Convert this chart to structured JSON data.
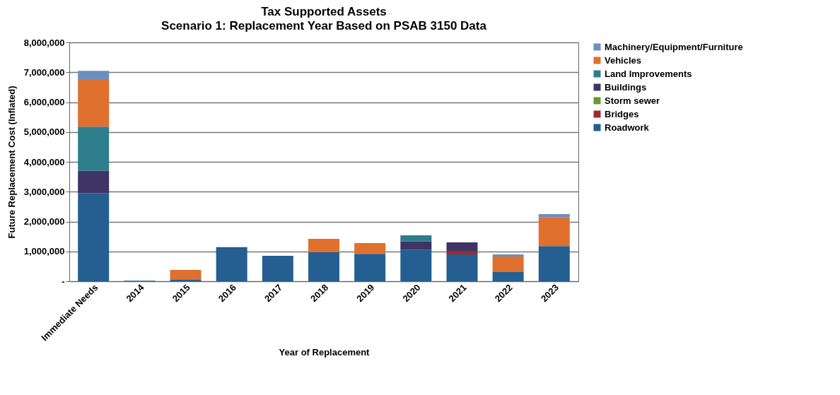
{
  "chart_data": {
    "type": "bar",
    "title": "Tax Supported Assets",
    "subtitle": "Scenario 1: Replacement Year Based on PSAB 3150 Data",
    "xlabel": "Year of Replacement",
    "ylabel": "Future Replacement Cost  (Inflated)",
    "categories": [
      "Immediate Needs",
      "2014",
      "2015",
      "2016",
      "2017",
      "2018",
      "2019",
      "2020",
      "2021",
      "2022",
      "2023"
    ],
    "stacked": true,
    "series": [
      {
        "name": "Roadwork",
        "color": "#255e91",
        "values": [
          2950000,
          20000,
          50000,
          1140000,
          850000,
          970000,
          920000,
          1060000,
          900000,
          310000,
          1180000
        ]
      },
      {
        "name": "Bridges",
        "color": "#9e2a2f",
        "values": [
          null,
          null,
          null,
          null,
          null,
          null,
          null,
          null,
          120000,
          null,
          null
        ]
      },
      {
        "name": "Storm sewer",
        "color": "#669933",
        "values": [
          null,
          null,
          null,
          null,
          null,
          null,
          null,
          null,
          null,
          null,
          null
        ]
      },
      {
        "name": "Buildings",
        "color": "#3e3466",
        "values": [
          750000,
          null,
          null,
          null,
          null,
          null,
          null,
          270000,
          280000,
          null,
          null
        ]
      },
      {
        "name": "Land Improvements",
        "color": "#2e7d8c",
        "values": [
          1480000,
          null,
          null,
          null,
          null,
          null,
          null,
          210000,
          null,
          null,
          null
        ]
      },
      {
        "name": "Vehicles",
        "color": "#e0702e",
        "values": [
          1590000,
          null,
          330000,
          null,
          null,
          450000,
          360000,
          null,
          null,
          520000,
          970000
        ]
      },
      {
        "name": "Machinery/Equipment/Furniture",
        "color": "#6d8fbf",
        "values": [
          280000,
          null,
          null,
          null,
          null,
          null,
          null,
          null,
          null,
          70000,
          100000
        ]
      }
    ],
    "ylim": [
      0,
      8000000
    ],
    "yticks": [
      {
        "value": 0,
        "label": "-"
      },
      {
        "value": 1000000,
        "label": "1,000,000"
      },
      {
        "value": 2000000,
        "label": "2,000,000"
      },
      {
        "value": 3000000,
        "label": "3,000,000"
      },
      {
        "value": 4000000,
        "label": "4,000,000"
      },
      {
        "value": 5000000,
        "label": "5,000,000"
      },
      {
        "value": 6000000,
        "label": "6,000,000"
      },
      {
        "value": 7000000,
        "label": "7,000,000"
      },
      {
        "value": 8000000,
        "label": "8,000,000"
      }
    ],
    "grid": "y",
    "legend": "right"
  }
}
